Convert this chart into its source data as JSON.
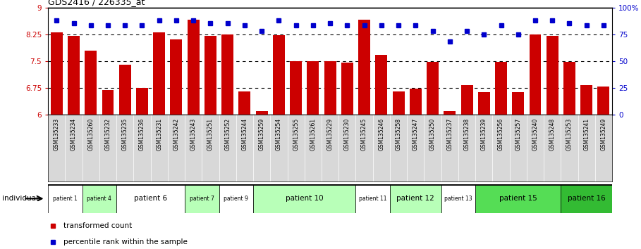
{
  "title": "GDS2416 / 226335_at",
  "samples": [
    "GSM135233",
    "GSM135234",
    "GSM135260",
    "GSM135232",
    "GSM135235",
    "GSM135236",
    "GSM135231",
    "GSM135242",
    "GSM135243",
    "GSM135251",
    "GSM135252",
    "GSM135244",
    "GSM135259",
    "GSM135254",
    "GSM135255",
    "GSM135261",
    "GSM135229",
    "GSM135230",
    "GSM135245",
    "GSM135246",
    "GSM135258",
    "GSM135247",
    "GSM135250",
    "GSM135237",
    "GSM135238",
    "GSM135239",
    "GSM135256",
    "GSM135257",
    "GSM135240",
    "GSM135248",
    "GSM135253",
    "GSM135241",
    "GSM135249"
  ],
  "bar_values": [
    8.3,
    8.2,
    7.8,
    6.68,
    7.4,
    6.75,
    8.3,
    8.1,
    8.65,
    8.2,
    8.25,
    6.65,
    6.1,
    8.22,
    7.5,
    7.5,
    7.5,
    7.45,
    8.65,
    7.68,
    6.65,
    6.73,
    7.48,
    6.1,
    6.83,
    6.63,
    7.48,
    6.63,
    8.25,
    8.2,
    7.48,
    6.83,
    6.78
  ],
  "dot_values": [
    88,
    85,
    83,
    83,
    83,
    83,
    88,
    88,
    88,
    85,
    85,
    83,
    78,
    88,
    83,
    83,
    85,
    83,
    83,
    83,
    83,
    83,
    78,
    68,
    78,
    75,
    83,
    75,
    88,
    88,
    85,
    83,
    83
  ],
  "patients": [
    {
      "label": "patient 1",
      "start": 0,
      "end": 2,
      "color": "#ffffff"
    },
    {
      "label": "patient 4",
      "start": 2,
      "end": 4,
      "color": "#b8ffb8"
    },
    {
      "label": "patient 6",
      "start": 4,
      "end": 8,
      "color": "#ffffff"
    },
    {
      "label": "patient 7",
      "start": 8,
      "end": 10,
      "color": "#b8ffb8"
    },
    {
      "label": "patient 9",
      "start": 10,
      "end": 12,
      "color": "#ffffff"
    },
    {
      "label": "patient 10",
      "start": 12,
      "end": 18,
      "color": "#b8ffb8"
    },
    {
      "label": "patient 11",
      "start": 18,
      "end": 20,
      "color": "#ffffff"
    },
    {
      "label": "patient 12",
      "start": 20,
      "end": 23,
      "color": "#b8ffb8"
    },
    {
      "label": "patient 13",
      "start": 23,
      "end": 25,
      "color": "#ffffff"
    },
    {
      "label": "patient 15",
      "start": 25,
      "end": 30,
      "color": "#55dd55"
    },
    {
      "label": "patient 16",
      "start": 30,
      "end": 33,
      "color": "#33bb33"
    }
  ],
  "ylim_left": [
    6.0,
    9.0
  ],
  "ylim_right": [
    0,
    100
  ],
  "yticks_left": [
    6.0,
    6.75,
    7.5,
    8.25,
    9.0
  ],
  "yticks_right": [
    0,
    25,
    50,
    75,
    100
  ],
  "ytick_labels_left": [
    "6",
    "6.75",
    "7.5",
    "8.25",
    "9"
  ],
  "ytick_labels_right": [
    "0",
    "25",
    "50",
    "75",
    "100%"
  ],
  "bar_color": "#cc0000",
  "dot_color": "#0000cc",
  "legend_bar_label": "transformed count",
  "legend_dot_label": "percentile rank within the sample",
  "individual_label": "individual",
  "xticklabel_bg": "#d8d8d8"
}
